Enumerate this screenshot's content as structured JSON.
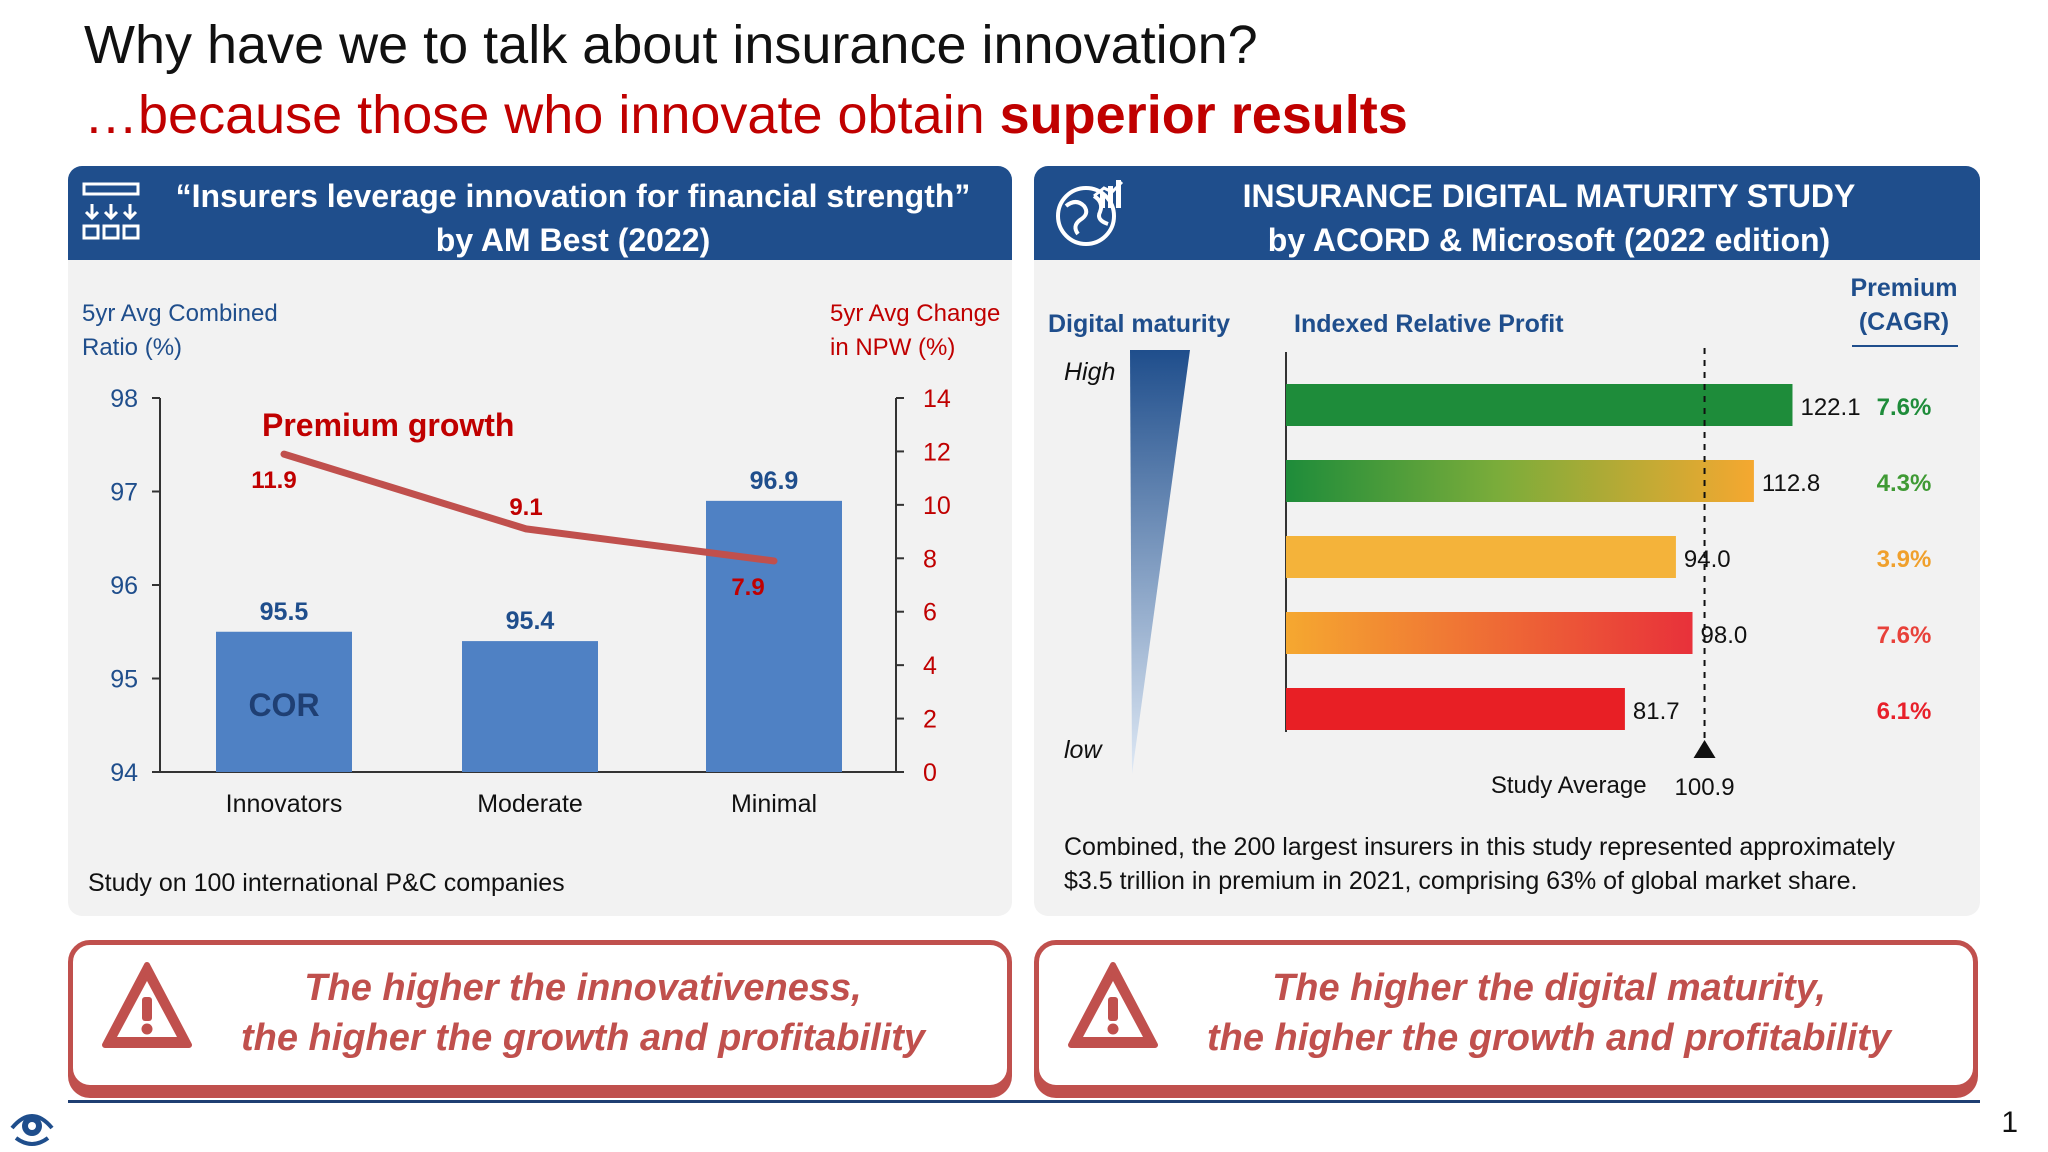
{
  "title": {
    "line1": "Why have we to talk about insurance innovation?",
    "line2_prefix": "…because those who innovate obtain ",
    "line2_bold": "superior results"
  },
  "left_panel": {
    "header_line1": "“Insurers leverage innovation for financial strength”",
    "header_line2": "by AM Best  (2022)",
    "note": "Study on 100 international P&C companies"
  },
  "right_panel": {
    "header_line1": "INSURANCE DIGITAL MATURITY STUDY",
    "header_line2": "by ACORD & Microsoft (2022 edition)",
    "maturity_label": "Digital maturity",
    "maturity_high": "High",
    "maturity_low": "low",
    "premium_header_1": "Premium",
    "premium_header_2": "(CAGR)",
    "note_line1": "Combined, the 200 largest insurers in this study represented approximately",
    "note_line2": "$3.5 trillion in premium in 2021, comprising 63% of global market share."
  },
  "callouts": {
    "left_line1": "The higher the innovativeness,",
    "left_line2": "the higher the growth and profitability",
    "right_line1": "The higher the digital maturity,",
    "right_line2": "the higher the growth and profitability"
  },
  "footer": {
    "page_number": "1"
  },
  "colors": {
    "navy": "#1f4e8c",
    "red": "#c00000",
    "bar_blue": "#4f81c4",
    "line_red": "#c0504d"
  },
  "chart_data": [
    {
      "type": "bar",
      "title": "Premium growth",
      "categories": [
        "Innovators",
        "Moderate",
        "Minimal"
      ],
      "series": [
        {
          "name": "COR",
          "axis": "left",
          "values": [
            95.5,
            95.4,
            96.9
          ],
          "labels": [
            "95.5",
            "95.4",
            "96.9"
          ]
        },
        {
          "name": "Premium growth",
          "axis": "right",
          "kind": "line",
          "values": [
            11.9,
            9.1,
            7.9
          ],
          "labels": [
            "11.9",
            "9.1",
            "7.9"
          ]
        }
      ],
      "ylabel": "5yr Avg Combined Ratio (%)",
      "ylabel_lines": [
        "5yr Avg Combined",
        "Ratio (%)"
      ],
      "ylim": [
        94,
        98
      ],
      "yticks": [
        "94",
        "95",
        "96",
        "97",
        "98"
      ],
      "y2label": "5yr Avg Change in NPW (%)",
      "y2label_lines": [
        "5yr Avg Change",
        "in NPW (%)"
      ],
      "y2lim": [
        0,
        14
      ],
      "y2ticks": [
        "0",
        "2",
        "4",
        "6",
        "8",
        "10",
        "12",
        "14"
      ],
      "bar_label": "COR"
    },
    {
      "type": "bar",
      "orientation": "horizontal",
      "title": "Indexed Relative Profit",
      "values": [
        122.1,
        112.8,
        94.0,
        98.0,
        81.7
      ],
      "labels": [
        "122.1",
        "112.8",
        "94.0",
        "98.0",
        "81.7"
      ],
      "premium_cagr": [
        "7.6%",
        "4.3%",
        "3.9%",
        "7.6%",
        "6.1%"
      ],
      "premium_colors": [
        "#1e8c3a",
        "#3f9a34",
        "#f0a02c",
        "#e8413a",
        "#e8202a"
      ],
      "reference": {
        "label": "Study Average",
        "value": 100.9,
        "value_label": "100.9"
      },
      "xlim": [
        0,
        135
      ]
    }
  ]
}
